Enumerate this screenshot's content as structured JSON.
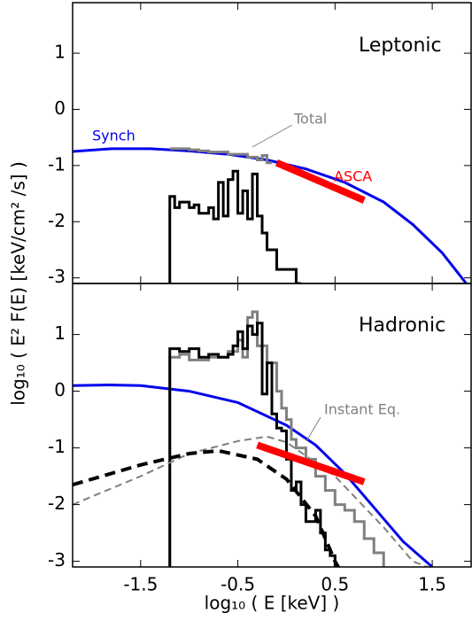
{
  "chart_data": [
    {
      "type": "line",
      "title": "Leptonic",
      "y_label": "log₁₀ ( E² F(E) [keV/cm² /s] )",
      "xlim": [
        -2.2,
        1.9
      ],
      "xticks": [
        -1.5,
        -0.5,
        0.5,
        1.5
      ],
      "ylim": [
        -3.1,
        1.9
      ],
      "yticks": [
        -3,
        -2,
        -1,
        0,
        1
      ],
      "series": [
        {
          "name": "Synch",
          "color": "#0000ee",
          "x": [
            -2.2,
            -1.8,
            -1.4,
            -1.0,
            -0.6,
            -0.2,
            0.2,
            0.6,
            1.0,
            1.3,
            1.6,
            1.85
          ],
          "values": [
            -0.75,
            -0.7,
            -0.7,
            -0.74,
            -0.8,
            -0.9,
            -1.06,
            -1.3,
            -1.65,
            -2.05,
            -2.55,
            -3.1
          ]
        },
        {
          "name": "Total",
          "color": "#808080",
          "steps": true,
          "x": [
            -1.2,
            -1.0,
            -0.9,
            -0.8,
            -0.6,
            -0.4,
            -0.3,
            -0.25,
            -0.2,
            -0.15
          ],
          "values": [
            -0.7,
            -0.72,
            -0.74,
            -0.76,
            -0.8,
            -0.85,
            -0.9,
            -0.82,
            -0.95,
            -0.95
          ]
        },
        {
          "color": "#000000",
          "steps": true,
          "x": [
            -1.2,
            -1.2,
            -1.15,
            -1.1,
            -1.0,
            -0.95,
            -0.9,
            -0.8,
            -0.75,
            -0.7,
            -0.65,
            -0.6,
            -0.55,
            -0.5,
            -0.45,
            -0.4,
            -0.35,
            -0.3,
            -0.25,
            -0.2,
            -0.1,
            -0.05,
            0.0,
            0.1,
            0.15
          ],
          "values": [
            -3.1,
            -1.55,
            -1.75,
            -1.65,
            -1.75,
            -1.7,
            -1.85,
            -1.75,
            -1.95,
            -1.3,
            -1.9,
            -1.25,
            -1.1,
            -1.85,
            -1.45,
            -1.95,
            -1.15,
            -1.9,
            -2.2,
            -2.5,
            -2.85,
            -2.85,
            -2.85,
            -3.1,
            -3.1
          ]
        },
        {
          "name": "ASCA",
          "color": "#ff0000",
          "width": 8,
          "x": [
            -0.1,
            0.8
          ],
          "values": [
            -0.95,
            -1.62
          ]
        }
      ]
    },
    {
      "type": "line",
      "title": "Hadronic",
      "x_label": "log₁₀ ( E [keV] )",
      "xlim": [
        -2.2,
        1.9
      ],
      "xticks": [
        -1.5,
        -0.5,
        0.5,
        1.5
      ],
      "ylim": [
        -3.1,
        1.9
      ],
      "yticks": [
        -3,
        -2,
        -1,
        0,
        1
      ],
      "series": [
        {
          "color": "#0000ee",
          "x": [
            -2.2,
            -1.8,
            -1.5,
            -1.0,
            -0.5,
            0.0,
            0.3,
            0.6,
            0.9,
            1.2,
            1.5
          ],
          "values": [
            0.1,
            0.11,
            0.1,
            0.0,
            -0.2,
            -0.6,
            -0.95,
            -1.45,
            -2.05,
            -2.65,
            -3.1
          ]
        },
        {
          "name": "Instant Eq.",
          "color": "#808080",
          "steps": true,
          "x": [
            -1.2,
            -1.2,
            -1.1,
            -1.0,
            -0.8,
            -0.6,
            -0.5,
            -0.45,
            -0.4,
            -0.35,
            -0.3,
            -0.2,
            -0.1,
            -0.05,
            0.0,
            0.05,
            0.1,
            0.2,
            0.3,
            0.4,
            0.5,
            0.6,
            0.7,
            0.8,
            0.9,
            1.0
          ],
          "values": [
            -3.1,
            0.6,
            0.65,
            0.55,
            0.6,
            0.7,
            0.9,
            0.6,
            1.3,
            1.4,
            0.8,
            0.5,
            0.0,
            -0.3,
            -0.5,
            -0.85,
            -1.0,
            -1.2,
            -1.5,
            -1.75,
            -2.0,
            -2.1,
            -2.3,
            -2.6,
            -2.85,
            -3.1
          ]
        },
        {
          "color": "#000000",
          "steps": true,
          "x": [
            -1.2,
            -1.2,
            -1.1,
            -1.0,
            -0.9,
            -0.8,
            -0.7,
            -0.6,
            -0.55,
            -0.5,
            -0.45,
            -0.4,
            -0.35,
            -0.3,
            -0.25,
            -0.2,
            -0.15,
            -0.1,
            -0.05,
            0.0,
            0.05,
            0.1,
            0.15,
            0.2,
            0.3,
            0.35,
            0.4,
            0.45,
            0.5
          ],
          "values": [
            -3.1,
            0.75,
            0.7,
            0.75,
            0.6,
            0.65,
            0.6,
            0.65,
            0.8,
            1.05,
            0.75,
            1.15,
            1.0,
            1.2,
            -0.05,
            0.5,
            -0.4,
            -0.65,
            -0.7,
            -1.2,
            -1.75,
            -1.6,
            -2.0,
            -2.3,
            -2.1,
            -2.5,
            -2.8,
            -2.9,
            -3.1
          ]
        },
        {
          "color": "#808080",
          "dashed": true,
          "width": 2,
          "x": [
            -2.2,
            -1.5,
            -1.0,
            -0.5,
            -0.2,
            0.0,
            0.5,
            1.0,
            1.3,
            1.6
          ],
          "values": [
            -2.0,
            -1.5,
            -1.1,
            -0.88,
            -0.8,
            -0.9,
            -1.5,
            -2.4,
            -3.0,
            -3.2
          ]
        },
        {
          "color": "#000000",
          "dashed": true,
          "width": 4,
          "x": [
            -2.2,
            -1.5,
            -1.0,
            -0.7,
            -0.3,
            0.0,
            0.3,
            0.5,
            0.6
          ],
          "values": [
            -1.65,
            -1.3,
            -1.1,
            -1.05,
            -1.2,
            -1.55,
            -2.2,
            -3.0,
            -3.3
          ]
        },
        {
          "color": "#ff0000",
          "width": 8,
          "x": [
            -0.3,
            0.8
          ],
          "values": [
            -0.95,
            -1.6
          ]
        }
      ]
    }
  ]
}
